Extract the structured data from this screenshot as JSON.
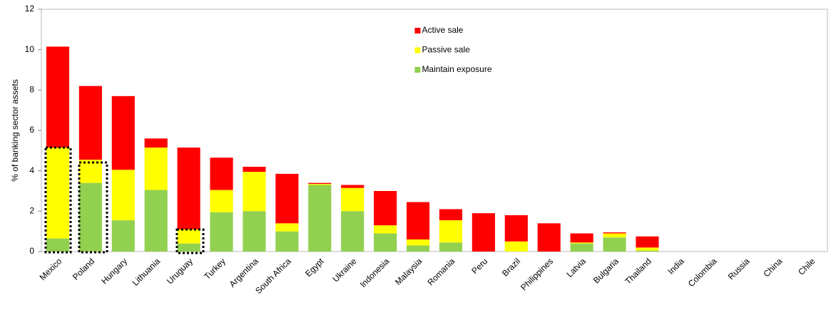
{
  "chart_data": {
    "type": "stacked_bar",
    "y_label": "% of banking sector assets",
    "categories": [
      "Mexico",
      "Poland",
      "Hungary",
      "Lithuania",
      "Uruguay",
      "Turkey",
      "Argentina",
      "South Africa",
      "Egypt",
      "Ukraine",
      "Indonesia",
      "Malaysia",
      "Romania",
      "Peru",
      "Brazil",
      "Philippines",
      "Latvia",
      "Bulgaria",
      "Thailand",
      "India",
      "Colombia",
      "Russia",
      "China",
      "Chile"
    ],
    "series": [
      {
        "name": "Maintain exposure",
        "color": "#92d050",
        "values": [
          0.65,
          3.4,
          1.55,
          3.05,
          0.4,
          1.95,
          2.0,
          1.0,
          3.3,
          2.0,
          0.9,
          0.3,
          0.45,
          0,
          0,
          0,
          0.4,
          0.7,
          0.05,
          0,
          0,
          0,
          0,
          0
        ]
      },
      {
        "name": "Passive sale",
        "color": "#ffff00",
        "values": [
          4.5,
          1.15,
          2.5,
          2.1,
          0.7,
          1.1,
          1.95,
          0.4,
          0.05,
          1.15,
          0.4,
          0.3,
          1.1,
          0,
          0.5,
          0,
          0.05,
          0.2,
          0.15,
          0,
          0,
          0,
          0,
          0
        ]
      },
      {
        "name": "Active sale",
        "color": "#ff0000",
        "values": [
          5.0,
          3.65,
          3.65,
          0.45,
          4.05,
          1.6,
          0.25,
          2.45,
          0.05,
          0.15,
          1.7,
          1.85,
          0.55,
          1.9,
          1.3,
          1.4,
          0.45,
          0.05,
          0.55,
          0,
          0,
          0,
          0,
          0
        ]
      }
    ],
    "ylim": [
      0,
      12
    ],
    "yticks": [
      0,
      2,
      4,
      6,
      8,
      10,
      12
    ],
    "legend": "top-center"
  }
}
